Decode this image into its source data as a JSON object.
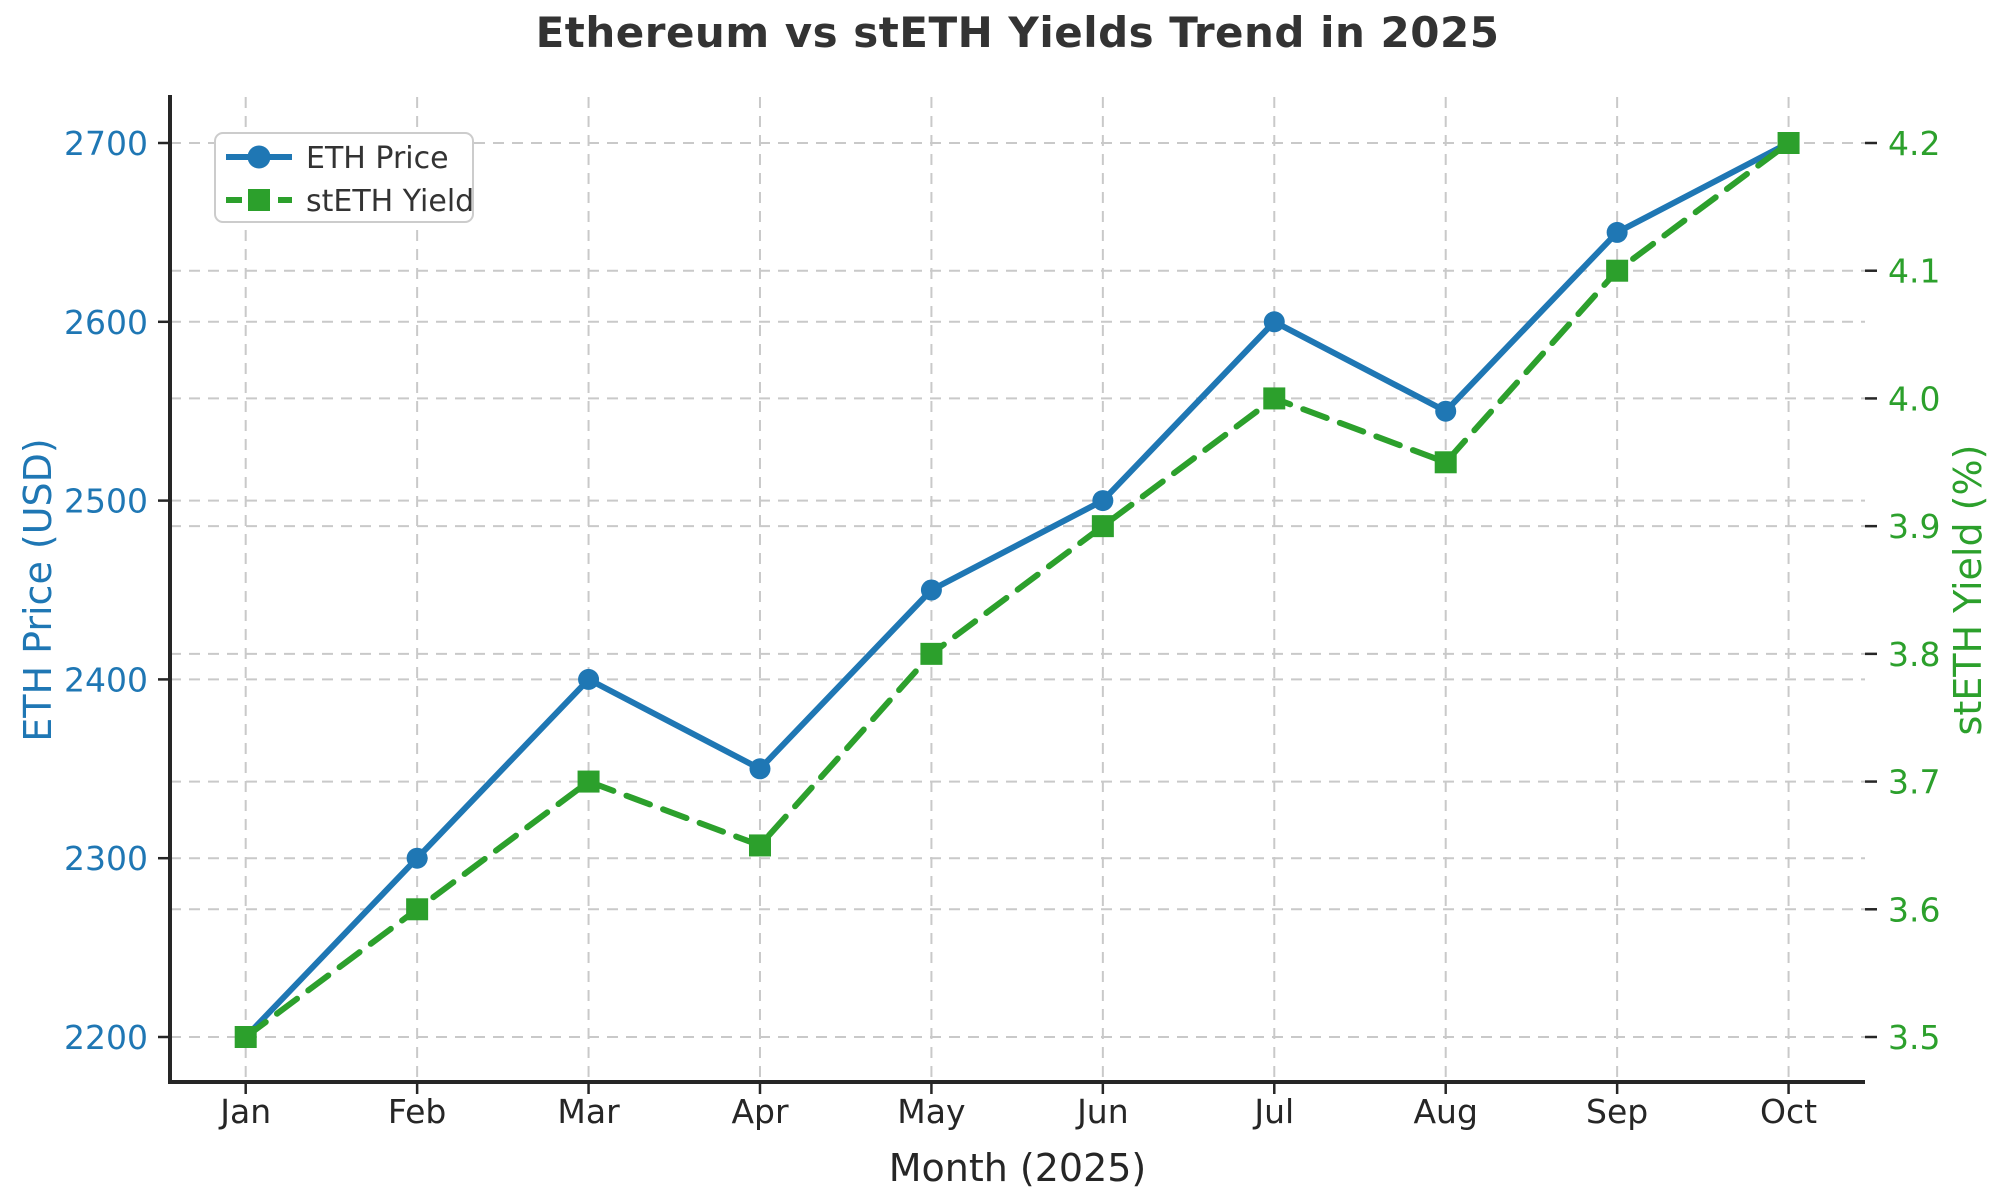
{
  "title": "Ethereum vs stETH Yields Trend in 2025",
  "chart_data": {
    "type": "line",
    "title": "Ethereum vs stETH Yields Trend in 2025",
    "xlabel": "Month (2025)",
    "ylabel_left": "ETH Price (USD)",
    "ylabel_right": "stETH Yield (%)",
    "categories": [
      "Jan",
      "Feb",
      "Mar",
      "Apr",
      "May",
      "Jun",
      "Jul",
      "Aug",
      "Sep",
      "Oct"
    ],
    "series": [
      {
        "name": "ETH Price",
        "axis": "left",
        "color": "#1f77b4",
        "line_style": "solid",
        "marker": "circle",
        "values": [
          2200,
          2300,
          2400,
          2350,
          2450,
          2500,
          2600,
          2550,
          2650,
          2700
        ]
      },
      {
        "name": "stETH Yield",
        "axis": "right",
        "color": "#2ca02c",
        "line_style": "dashed",
        "marker": "square",
        "values": [
          3.5,
          3.6,
          3.7,
          3.65,
          3.8,
          3.9,
          4.0,
          3.95,
          4.1,
          4.2
        ]
      }
    ],
    "left_axis": {
      "ticks": [
        2200,
        2300,
        2400,
        2500,
        2600,
        2700
      ],
      "tick_range": [
        2200,
        2700
      ],
      "color": "#1f77b4"
    },
    "right_axis": {
      "ticks": [
        3.5,
        3.6,
        3.7,
        3.8,
        3.9,
        4.0,
        4.1,
        4.2
      ],
      "tick_range": [
        3.5,
        4.2
      ],
      "tick_decimals": 1,
      "color": "#2ca02c"
    },
    "grid": true,
    "grid_color": "#c9c9c9",
    "spine_color": "#262626",
    "tick_label_color_bottom": "#262626",
    "legend": {
      "position": "upper left",
      "labels": [
        "ETH Price",
        "stETH Yield"
      ],
      "border_color": "#cccccc",
      "background": "#ffffff"
    }
  }
}
